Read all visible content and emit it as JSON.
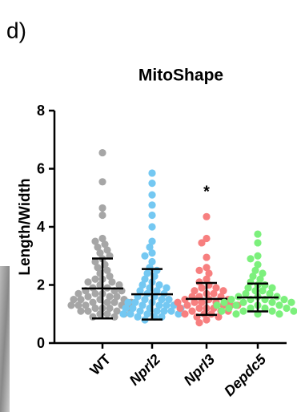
{
  "panel_label": "d)",
  "chart_data": {
    "type": "scatter",
    "title": "MitoShape",
    "y_label": "Length/Width",
    "categories": [
      "WT",
      "Nprl2",
      "Nprl3",
      "Depdc5"
    ],
    "italic": [
      false,
      true,
      true,
      true
    ],
    "ylim": [
      0,
      8
    ],
    "yticks": [
      0,
      2,
      4,
      6,
      8
    ],
    "series": [
      {
        "name": "WT",
        "color": "#a6a6a6",
        "mean": 1.88,
        "sd": 1.03,
        "values": [
          6.55,
          5.55,
          4.65,
          4.4,
          3.6,
          3.5,
          3.4,
          3.3,
          3.2,
          3.1,
          3.0,
          2.9,
          2.8,
          2.7,
          2.6,
          2.5,
          2.4,
          2.3,
          2.2,
          2.2,
          2.1,
          2.1,
          2.0,
          2.0,
          1.9,
          1.9,
          1.8,
          1.8,
          1.8,
          1.7,
          1.7,
          1.7,
          1.6,
          1.6,
          1.6,
          1.5,
          1.5,
          1.5,
          1.5,
          1.4,
          1.4,
          1.4,
          1.4,
          1.3,
          1.3,
          1.3,
          1.3,
          1.2,
          1.2,
          1.2,
          1.2,
          1.1,
          1.1,
          1.1,
          1.0,
          1.0,
          1.0,
          0.9,
          0.9
        ]
      },
      {
        "name": "Nprl2",
        "color": "#74c8f2",
        "mean": 1.68,
        "sd": 0.87,
        "values": [
          5.85,
          5.5,
          5.1,
          4.75,
          4.4,
          4.0,
          3.5,
          3.3,
          3.1,
          3.0,
          2.8,
          2.6,
          2.5,
          2.4,
          2.3,
          2.2,
          2.1,
          2.0,
          2.0,
          1.9,
          1.9,
          1.8,
          1.8,
          1.7,
          1.7,
          1.6,
          1.6,
          1.5,
          1.5,
          1.5,
          1.4,
          1.4,
          1.4,
          1.3,
          1.3,
          1.3,
          1.3,
          1.2,
          1.2,
          1.2,
          1.2,
          1.1,
          1.1,
          1.1,
          1.1,
          1.0,
          1.0,
          1.0,
          1.0,
          0.9,
          0.9,
          0.9,
          0.8
        ]
      },
      {
        "name": "Nprl3",
        "color": "#f77f7f",
        "mean": 1.52,
        "sd": 0.55,
        "values": [
          4.35,
          3.6,
          3.45,
          2.95,
          2.6,
          2.5,
          2.4,
          2.2,
          2.1,
          2.0,
          1.9,
          1.9,
          1.8,
          1.8,
          1.7,
          1.7,
          1.6,
          1.6,
          1.6,
          1.5,
          1.5,
          1.5,
          1.4,
          1.4,
          1.4,
          1.4,
          1.3,
          1.3,
          1.3,
          1.3,
          1.2,
          1.2,
          1.2,
          1.2,
          1.1,
          1.1,
          1.1,
          1.0,
          1.0,
          1.0,
          0.9,
          0.9,
          0.8,
          0.7
        ]
      },
      {
        "name": "Depdc5",
        "color": "#7cf07c",
        "mean": 1.57,
        "sd": 0.48,
        "values": [
          3.75,
          3.45,
          3.0,
          2.9,
          2.7,
          2.5,
          2.4,
          2.3,
          2.2,
          2.1,
          2.0,
          2.0,
          1.9,
          1.9,
          1.8,
          1.8,
          1.7,
          1.7,
          1.6,
          1.6,
          1.6,
          1.5,
          1.5,
          1.5,
          1.5,
          1.4,
          1.4,
          1.4,
          1.4,
          1.3,
          1.3,
          1.3,
          1.3,
          1.2,
          1.2,
          1.2,
          1.2,
          1.1,
          1.1,
          1.1,
          1.1,
          1.0,
          1.0,
          1.0
        ]
      }
    ],
    "annotations": [
      {
        "text": "*",
        "category": "Nprl3"
      }
    ]
  }
}
